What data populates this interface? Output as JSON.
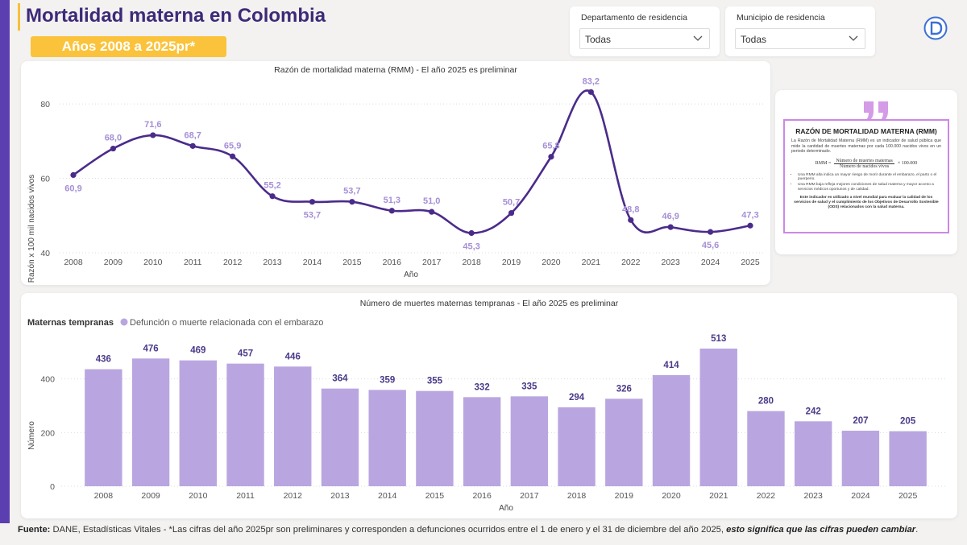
{
  "header": {
    "title": "Mortalidad materna en Colombia",
    "years_badge": "Años 2008 a 2025pr*"
  },
  "filters": [
    {
      "label": "Departamento de residencia",
      "value": "Todas"
    },
    {
      "label": "Municipio de residencia",
      "value": "Todas"
    }
  ],
  "info_card": {
    "title": "RAZÓN DE MORTALIDAD MATERNA (RMM)",
    "text": "La Razón de Mortalidad Materna (RMM) es un indicador de salud pública que mide la cantidad de muertes maternas por cada 100.000 nacidos vivos en un periodo determinado.",
    "formula_lhs": "RMM =",
    "formula_num": "Número de muertes maternas",
    "formula_den": "Número de nacidos vivos",
    "formula_rhs": "× 100.000",
    "bullets": [
      "Una RMM alta indica un mayor riesgo de morir durante el embarazo, el parto o el puerperio.",
      "Una RMM baja refleja mejores condiciones de salud materna y mayor acceso a servicios médicos oportunos y de calidad."
    ],
    "footer": "Este indicador es utilizado a nivel mundial para evaluar la calidad de los servicios de salud y el cumplimiento de los Objetivos de Desarrollo Sostenible (ODS) relacionados con la salud materna."
  },
  "colors": {
    "line": "#4b2b8a",
    "line_labels": "#a58fd6",
    "bars": "#b9a6e0",
    "bar_labels": "#4b3a8a",
    "accent": "#5b3fb0",
    "badge": "#fbc33b"
  },
  "footer": {
    "source_label": "Fuente:",
    "source_text": " DANE, Estadísticas Vitales - *Las cifras del año 2025pr son preliminares y corresponden a defunciones ocurridos entre el 1 de enero y el 31 de diciembre del año 2025, ",
    "emphasis": "esto significa que las cifras pueden cambiar",
    "end": "."
  },
  "chart_data": [
    {
      "type": "line",
      "title": "Razón de mortalidad materna (RMM) - El año 2025 es preliminar",
      "xlabel": "Año",
      "ylabel": "Razón x 100 mil nacidos vivos",
      "x": [
        "2008",
        "2009",
        "2010",
        "2011",
        "2012",
        "2013",
        "2014",
        "2015",
        "2016",
        "2017",
        "2018",
        "2019",
        "2020",
        "2021",
        "2022",
        "2023",
        "2024",
        "2025"
      ],
      "values": [
        60.9,
        68.0,
        71.6,
        68.7,
        65.9,
        55.2,
        53.7,
        53.7,
        51.3,
        51.0,
        45.3,
        50.7,
        65.8,
        83.2,
        48.8,
        46.9,
        45.6,
        47.3
      ],
      "labels": [
        "60,9",
        "68,0",
        "71,6",
        "68,7",
        "65,9",
        "55,2",
        "53,7",
        "53,7",
        "51,3",
        "51,0",
        "45,3",
        "50,7",
        "65,8",
        "83,2",
        "48,8",
        "46,9",
        "45,6",
        "47,3"
      ],
      "label_below": [
        true,
        false,
        false,
        false,
        false,
        false,
        true,
        false,
        false,
        false,
        true,
        false,
        false,
        false,
        false,
        false,
        true,
        false
      ],
      "yticks": [
        "40",
        "60",
        "80"
      ],
      "ylim": [
        40,
        85
      ],
      "grid": true
    },
    {
      "type": "bar",
      "title": "Número de muertes maternas tempranas - El año 2025 es preliminar",
      "legend_title": "Maternas tempranas",
      "legend_item": "Defunción o muerte relacionada con el embarazo",
      "xlabel": "Año",
      "ylabel": "Número",
      "categories": [
        "2008",
        "2009",
        "2010",
        "2011",
        "2012",
        "2013",
        "2014",
        "2015",
        "2016",
        "2017",
        "2018",
        "2019",
        "2020",
        "2021",
        "2022",
        "2023",
        "2024",
        "2025"
      ],
      "values": [
        436,
        476,
        469,
        457,
        446,
        364,
        359,
        355,
        332,
        335,
        294,
        326,
        414,
        513,
        280,
        242,
        207,
        205
      ],
      "yticks": [
        "0",
        "200",
        "400"
      ],
      "ylim": [
        0,
        540
      ],
      "grid": true
    }
  ]
}
